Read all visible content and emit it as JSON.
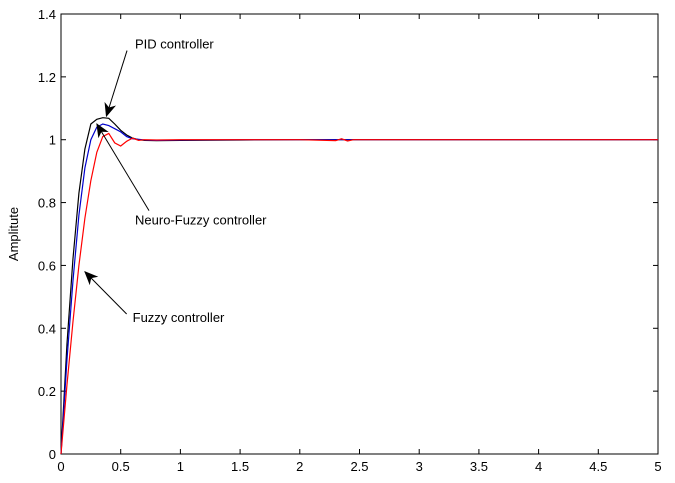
{
  "chart_data": {
    "type": "line",
    "title": "",
    "xlabel": "",
    "ylabel": "Amplitute",
    "xlim": [
      0,
      5
    ],
    "ylim": [
      0,
      1.4
    ],
    "xticks": [
      0,
      0.5,
      1,
      1.5,
      2,
      2.5,
      3,
      3.5,
      4,
      4.5,
      5
    ],
    "xtick_labels": [
      "0",
      "0.5",
      "1",
      "1.5",
      "2",
      "2.5",
      "3",
      "3.5",
      "4",
      "4.5",
      "5"
    ],
    "yticks": [
      0,
      0.2,
      0.4,
      0.6,
      0.8,
      1,
      1.2,
      1.4
    ],
    "ytick_labels": [
      "0",
      "0.2",
      "0.4",
      "0.6",
      "0.8",
      "1",
      "1.2",
      "1.4"
    ],
    "grid": false,
    "legend": "none",
    "series": [
      {
        "color": "#000000",
        "x": [
          0,
          0.05,
          0.1,
          0.15,
          0.2,
          0.25,
          0.3,
          0.35,
          0.4,
          0.45,
          0.5,
          0.55,
          0.6,
          0.65,
          0.7,
          0.8,
          1.0,
          1.5,
          2.0,
          3.0,
          4.0,
          5.0
        ],
        "y": [
          0,
          0.35,
          0.62,
          0.83,
          0.97,
          1.05,
          1.065,
          1.07,
          1.068,
          1.05,
          1.03,
          1.015,
          1.005,
          1.0,
          0.998,
          0.997,
          0.998,
          0.999,
          1.0,
          1.0,
          1.0,
          1.0
        ]
      },
      {
        "color": "#0000cc",
        "x": [
          0,
          0.05,
          0.1,
          0.15,
          0.2,
          0.25,
          0.3,
          0.35,
          0.4,
          0.45,
          0.5,
          0.55,
          0.6,
          0.7,
          0.8,
          1.0,
          1.5,
          2.0,
          3.0,
          4.0,
          5.0
        ],
        "y": [
          0,
          0.3,
          0.55,
          0.76,
          0.91,
          1.0,
          1.04,
          1.05,
          1.045,
          1.035,
          1.025,
          1.01,
          1.003,
          0.999,
          0.998,
          0.999,
          1.0,
          1.0,
          1.0,
          1.0,
          1.0
        ]
      },
      {
        "color": "#ff0000",
        "x": [
          0,
          0.05,
          0.1,
          0.15,
          0.2,
          0.25,
          0.3,
          0.35,
          0.4,
          0.45,
          0.5,
          0.55,
          0.6,
          0.65,
          0.7,
          0.8,
          1.0,
          1.5,
          2.0,
          2.3,
          2.35,
          2.4,
          2.45,
          3.0,
          4.0,
          5.0
        ],
        "y": [
          0,
          0.22,
          0.42,
          0.6,
          0.75,
          0.87,
          0.96,
          1.01,
          1.02,
          0.99,
          0.98,
          0.995,
          1.005,
          0.998,
          1.0,
          0.999,
          1.0,
          1.0,
          1.0,
          0.997,
          1.003,
          0.996,
          1.0,
          1.0,
          1.0,
          1.0
        ]
      }
    ],
    "annotations": [
      {
        "text": "PID controller",
        "tx": 0.62,
        "ty": 1.29,
        "ax": 0.38,
        "ay": 1.075
      },
      {
        "text": "Neuro-Fuzzy controller",
        "tx": 0.62,
        "ty": 0.73,
        "ax": 0.3,
        "ay": 1.05
      },
      {
        "text": "Fuzzy controller",
        "tx": 0.6,
        "ty": 0.42,
        "ax": 0.2,
        "ay": 0.58
      }
    ]
  }
}
